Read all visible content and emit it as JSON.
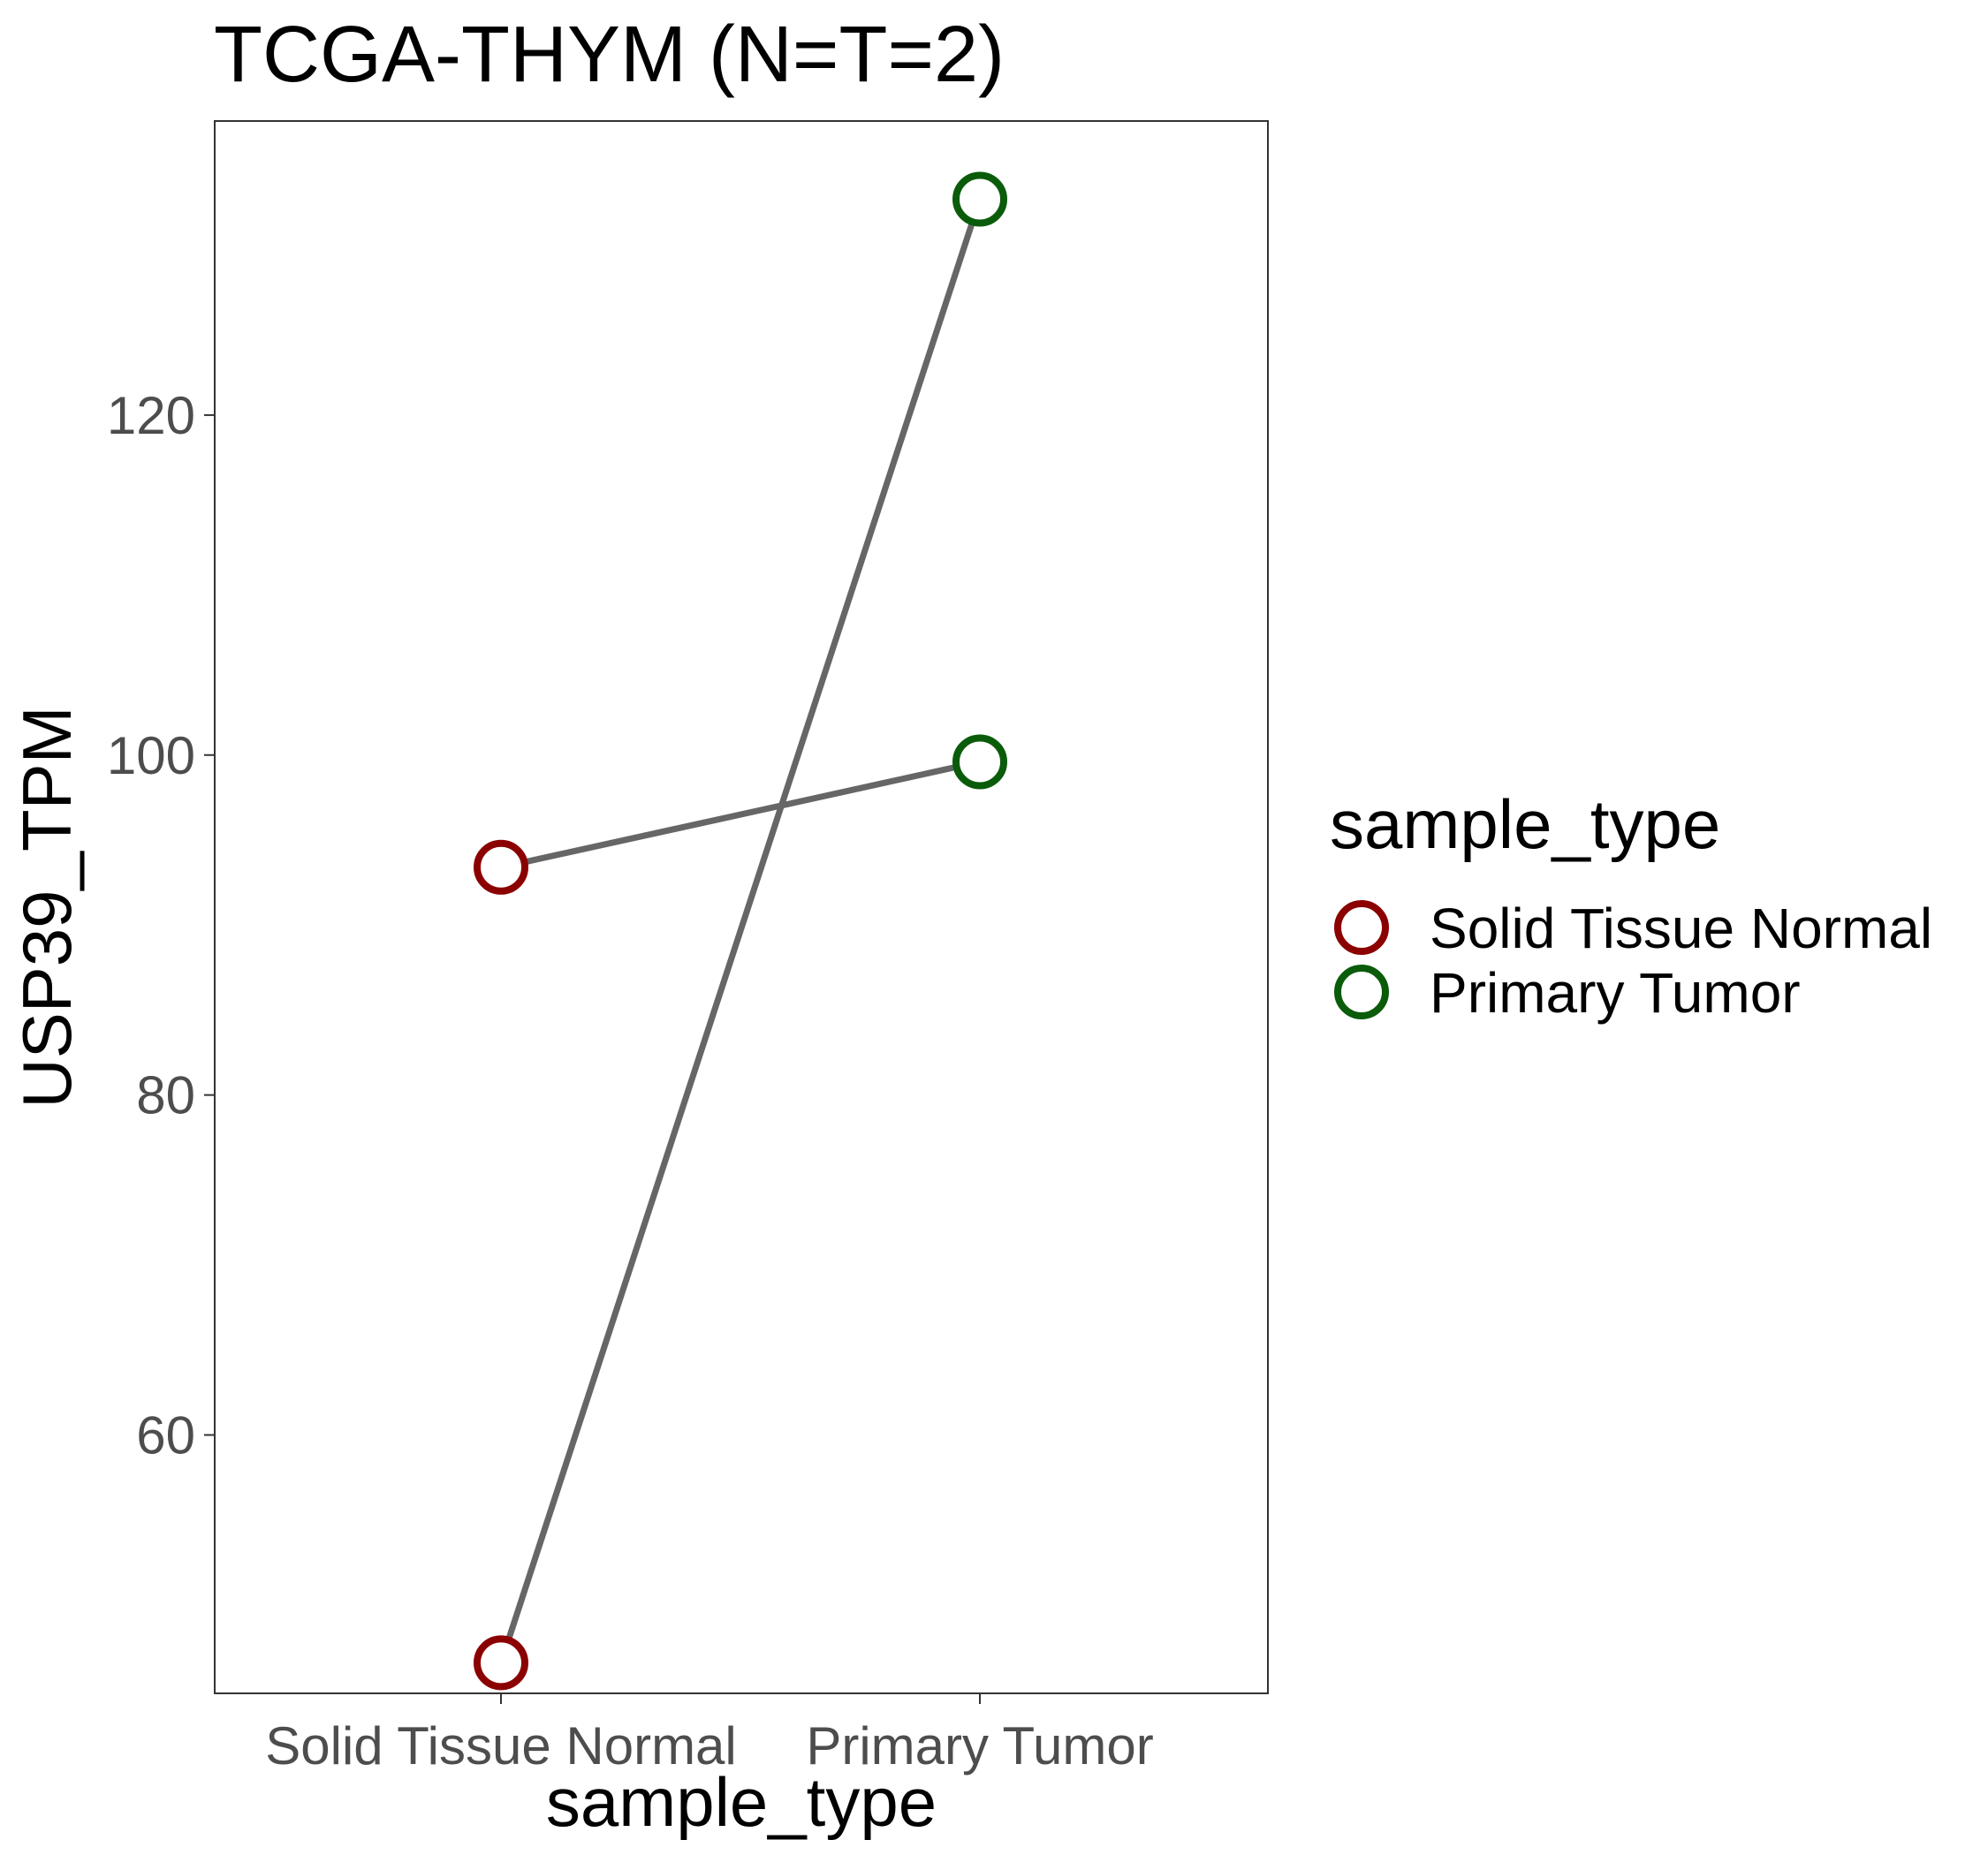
{
  "chart_data": {
    "type": "scatter",
    "title": "TCGA-THYM  (N=T=2)",
    "xlabel": "sample_type",
    "ylabel": "USP39_TPM",
    "categories": [
      "Solid Tissue Normal",
      "Primary Tumor"
    ],
    "y_ticks": [
      60,
      80,
      100,
      120
    ],
    "ylim": [
      44.8,
      137.3
    ],
    "grid": false,
    "legend": {
      "title": "sample_type",
      "position": "right",
      "entries": [
        {
          "label": "Solid Tissue Normal",
          "color": "#8b0000"
        },
        {
          "label": "Primary Tumor",
          "color": "#0a5c0a"
        }
      ]
    },
    "pairs": [
      {
        "normal": 93.4,
        "tumor": 99.6
      },
      {
        "normal": 46.6,
        "tumor": 132.7
      }
    ],
    "line_color": "#666666"
  }
}
